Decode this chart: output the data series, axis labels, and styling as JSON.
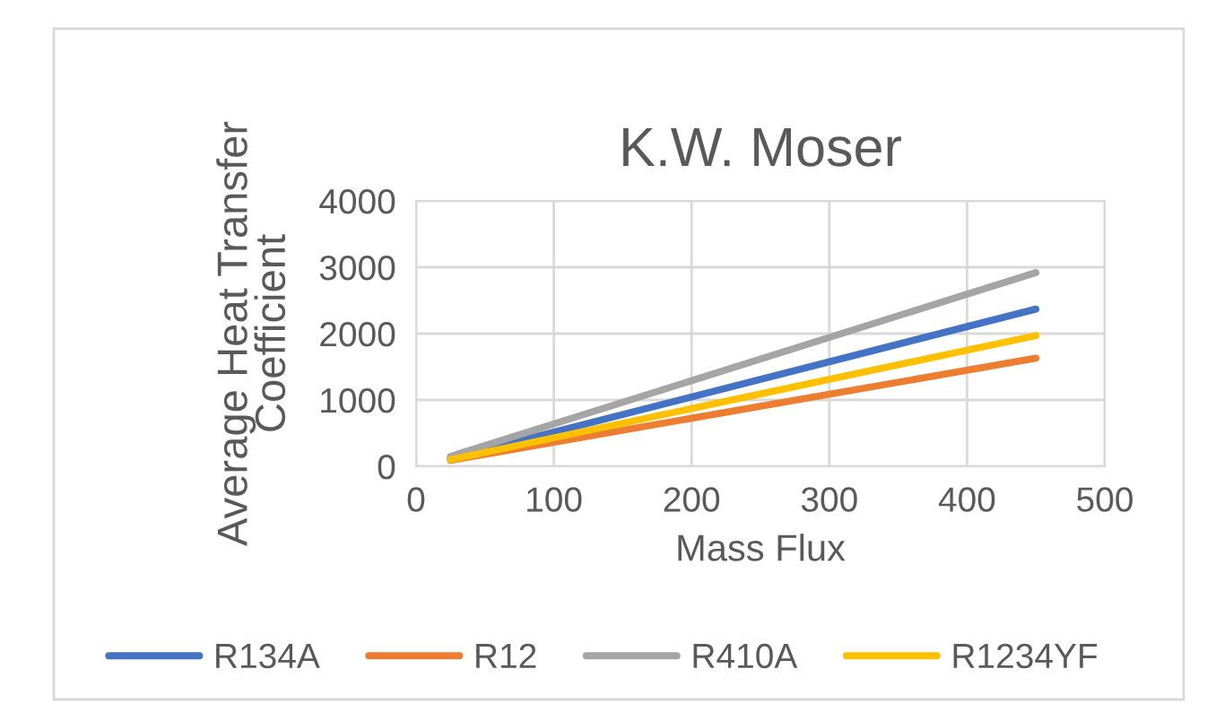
{
  "chart_data": {
    "type": "line",
    "title": "K.W. Moser",
    "xlabel": "Mass Flux",
    "ylabel": "Average Heat Transfer\nCoefficient",
    "x": [
      25,
      450
    ],
    "series": [
      {
        "name": "R134A",
        "color": "#4472c4",
        "values": [
          120,
          2370
        ]
      },
      {
        "name": "R12",
        "color": "#ed7d31",
        "values": [
          90,
          1630
        ]
      },
      {
        "name": "R410A",
        "color": "#a5a5a5",
        "values": [
          150,
          2920
        ]
      },
      {
        "name": "R1234YF",
        "color": "#ffc000",
        "values": [
          100,
          1970
        ]
      }
    ],
    "xlim": [
      0,
      500
    ],
    "xticks": [
      0,
      100,
      200,
      300,
      400,
      500
    ],
    "ylim": [
      0,
      4000
    ],
    "yticks": [
      0,
      1000,
      2000,
      3000,
      4000
    ],
    "grid": true,
    "legend": "bottom",
    "marker": "none",
    "line_style": "solid"
  }
}
